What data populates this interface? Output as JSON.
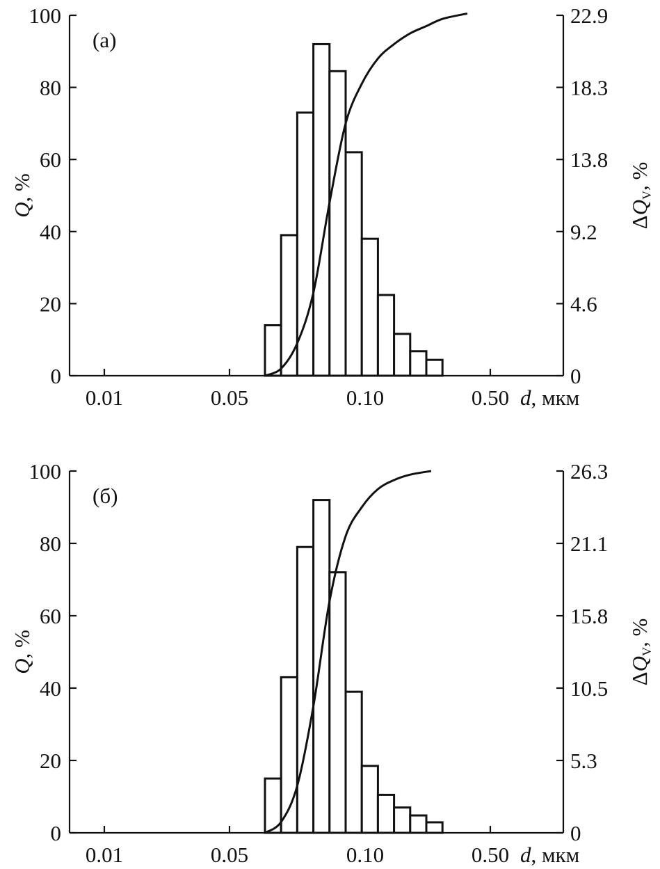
{
  "chart_data": [
    {
      "type": "bar",
      "panel_label": "(a)",
      "xlabel_var": "d",
      "xlabel_unit": ", мкм",
      "ylabel_var": "Q",
      "ylabel_unit": ", %",
      "y2label_var": "ΔQ",
      "y2label_sub": "V",
      "y2label_unit": ", %",
      "x_tick_labels": [
        "0.01",
        "0.05",
        "0.10",
        "0.50"
      ],
      "y_ticks": [
        0,
        20,
        40,
        60,
        80,
        100
      ],
      "y2_tick_labels": [
        "0",
        "4.6",
        "9.2",
        "13.8",
        "18.3",
        "22.9"
      ],
      "ylim": [
        0,
        100
      ],
      "y2lim": [
        0,
        22.9
      ],
      "grid": false,
      "histogram_Q_percent": [
        14,
        39,
        73,
        92,
        84.5,
        62,
        38,
        22.4,
        11.6,
        6.8,
        4.4
      ],
      "cumulative_curve_Q_percent": [
        0,
        2,
        9,
        23,
        48,
        70,
        81,
        88,
        92,
        95,
        97,
        99,
        100.5
      ]
    },
    {
      "type": "bar",
      "panel_label": "(б)",
      "xlabel_var": "d",
      "xlabel_unit": ", мкм",
      "ylabel_var": "Q",
      "ylabel_unit": ", %",
      "y2label_var": "ΔQ",
      "y2label_sub": "V",
      "y2label_unit": ", %",
      "x_tick_labels": [
        "0.01",
        "0.05",
        "0.10",
        "0.50"
      ],
      "y_ticks": [
        0,
        20,
        40,
        60,
        80,
        100
      ],
      "y2_tick_labels": [
        "0",
        "5.3",
        "10.5",
        "15.8",
        "21.1",
        "26.3"
      ],
      "ylim": [
        0,
        100
      ],
      "y2lim": [
        0,
        26.3
      ],
      "grid": false,
      "histogram_Q_percent": [
        15,
        43,
        79,
        92,
        72,
        39,
        18.5,
        10.5,
        7,
        4.8,
        2.9
      ],
      "cumulative_curve_Q_percent": [
        0,
        3,
        13,
        35,
        64,
        82,
        90,
        95,
        97.5,
        99,
        100
      ]
    }
  ]
}
